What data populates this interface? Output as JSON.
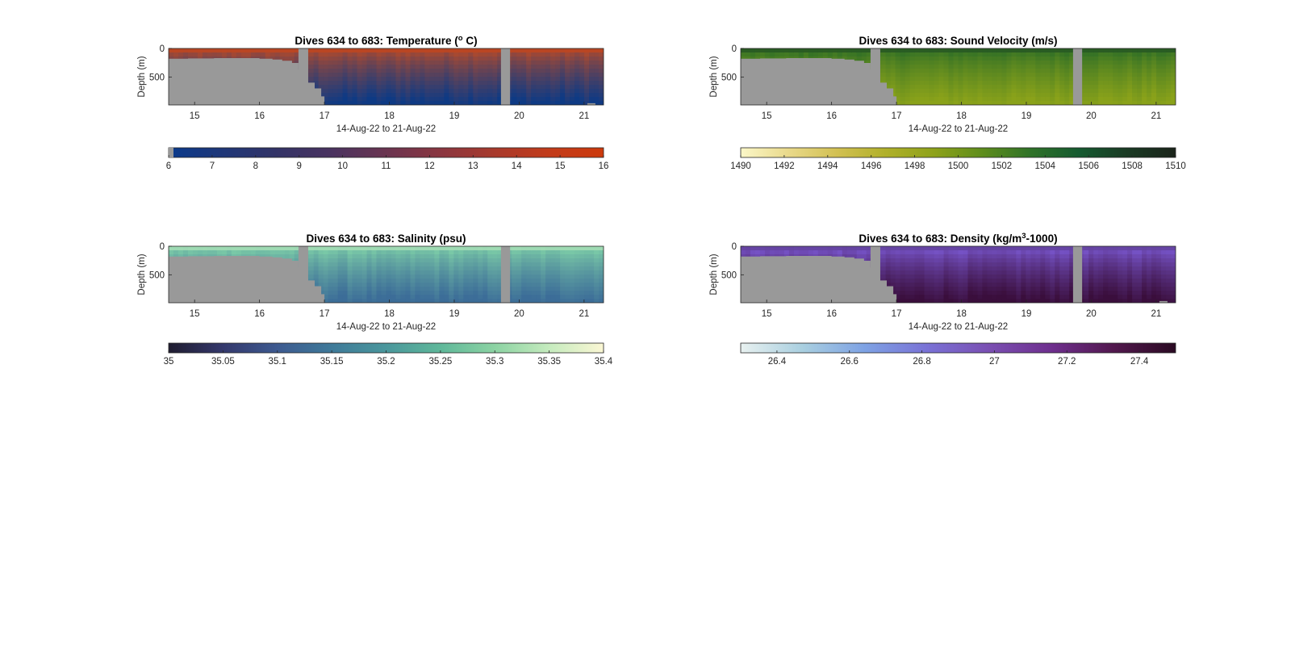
{
  "figure": {
    "background": "#ffffff",
    "nodata_color": "#999999"
  },
  "chart_data": [
    {
      "type": "heatmap",
      "variable": "temperature",
      "title_prefix": "Dives 634 to 683: Temperature (",
      "title_super": "o",
      "title_suffix": " C)",
      "xlabel": "14-Aug-22 to 21-Aug-22",
      "ylabel": "Depth (m)",
      "xlim": [
        14.6,
        21.3
      ],
      "ylim": [
        0,
        990
      ],
      "y_reversed": true,
      "xticks": [
        15,
        16,
        17,
        18,
        19,
        20,
        21
      ],
      "xtick_labels": [
        "15",
        "16",
        "17",
        "18",
        "19",
        "20",
        "21"
      ],
      "yticks": [
        0,
        500
      ],
      "ytick_labels": [
        "0",
        "500"
      ],
      "nodata_boundary": {
        "days": [
          14.6,
          14.9,
          15.3,
          15.7,
          16.0,
          16.2,
          16.35,
          16.5,
          16.6,
          16.7,
          16.75,
          16.85,
          16.95,
          17.0
        ],
        "depths": [
          180,
          175,
          170,
          170,
          180,
          195,
          215,
          255,
          370,
          560,
          600,
          700,
          840,
          990
        ]
      },
      "nodata_gap": [
        16.6,
        16.75
      ],
      "nodata_gap_2": [
        19.72,
        19.86
      ],
      "nodata_corner": {
        "day": 21.05,
        "depth": 960
      },
      "colorbar": {
        "min": 6,
        "max": 16,
        "ticks": [
          6,
          7,
          8,
          9,
          10,
          11,
          12,
          13,
          14,
          15,
          16
        ],
        "tick_labels": [
          "6",
          "7",
          "8",
          "9",
          "10",
          "11",
          "12",
          "13",
          "14",
          "15",
          "16"
        ],
        "colors": [
          "#0a3a8c",
          "#1f3778",
          "#333366",
          "#4a3360",
          "#6a3450",
          "#8a3640",
          "#a83a2c",
          "#c23b1a",
          "#cc3a0c"
        ]
      },
      "surface_color": "#b44a2a",
      "deep_color": "#0e3a84",
      "shallow_value": 12.8,
      "deep_value": 6.4
    },
    {
      "type": "heatmap",
      "variable": "sound_velocity",
      "title_prefix": "Dives 634 to 683: Sound Velocity (m/s)",
      "title_super": "",
      "title_suffix": "",
      "xlabel": "14-Aug-22 to 21-Aug-22",
      "ylabel": "Depth (m)",
      "xlim": [
        14.6,
        21.3
      ],
      "ylim": [
        0,
        990
      ],
      "y_reversed": true,
      "xticks": [
        15,
        16,
        17,
        18,
        19,
        20,
        21
      ],
      "xtick_labels": [
        "15",
        "16",
        "17",
        "18",
        "19",
        "20",
        "21"
      ],
      "yticks": [
        0,
        500
      ],
      "ytick_labels": [
        "0",
        "500"
      ],
      "nodata_boundary": {
        "days": [
          14.6,
          14.9,
          15.3,
          15.7,
          16.0,
          16.2,
          16.35,
          16.5,
          16.6,
          16.7,
          16.75,
          16.85,
          16.95,
          17.0
        ],
        "depths": [
          180,
          175,
          170,
          170,
          180,
          195,
          215,
          255,
          370,
          560,
          600,
          700,
          840,
          990
        ]
      },
      "nodata_gap": [
        16.6,
        16.75
      ],
      "nodata_gap_2": [
        19.72,
        19.86
      ],
      "nodata_corner": null,
      "colorbar": {
        "min": 1490,
        "max": 1510,
        "ticks": [
          1490,
          1492,
          1494,
          1496,
          1498,
          1500,
          1502,
          1504,
          1506,
          1508,
          1510
        ],
        "tick_labels": [
          "1490",
          "1492",
          "1494",
          "1496",
          "1498",
          "1500",
          "1502",
          "1504",
          "1506",
          "1508",
          "1510"
        ],
        "colors": [
          "#fbf7c8",
          "#e9d98a",
          "#d2c052",
          "#b0b02a",
          "#8ea21a",
          "#5e8d1c",
          "#2f7228",
          "#155a30",
          "#1a3a24",
          "#1b241a"
        ]
      },
      "surface_color": "#2e6e26",
      "deep_color": "#8aa21a",
      "shallow_value": 1505,
      "deep_value": 1497
    },
    {
      "type": "heatmap",
      "variable": "salinity",
      "title_prefix": "Dives 634 to 683: Salinity (psu)",
      "title_super": "",
      "title_suffix": "",
      "xlabel": "14-Aug-22 to 21-Aug-22",
      "ylabel": "Depth (m)",
      "xlim": [
        14.6,
        21.3
      ],
      "ylim": [
        0,
        990
      ],
      "y_reversed": true,
      "xticks": [
        15,
        16,
        17,
        18,
        19,
        20,
        21
      ],
      "xtick_labels": [
        "15",
        "16",
        "17",
        "18",
        "19",
        "20",
        "21"
      ],
      "yticks": [
        0,
        500
      ],
      "ytick_labels": [
        "0",
        "500"
      ],
      "nodata_boundary": {
        "days": [
          14.6,
          14.9,
          15.3,
          15.7,
          16.0,
          16.2,
          16.35,
          16.5,
          16.6,
          16.7,
          16.75,
          16.85,
          16.95,
          17.0
        ],
        "depths": [
          180,
          175,
          170,
          170,
          180,
          195,
          215,
          255,
          370,
          560,
          600,
          700,
          840,
          990
        ]
      },
      "nodata_gap": [
        16.6,
        16.75
      ],
      "nodata_gap_2": [
        19.72,
        19.86
      ],
      "nodata_corner": null,
      "colorbar": {
        "min": 35,
        "max": 35.4,
        "ticks": [
          35,
          35.05,
          35.1,
          35.15,
          35.2,
          35.25,
          35.3,
          35.35,
          35.4
        ],
        "tick_labels": [
          "35",
          "35.05",
          "35.1",
          "35.15",
          "35.2",
          "35.25",
          "35.3",
          "35.35",
          "35.4"
        ],
        "colors": [
          "#1f1c30",
          "#34386c",
          "#3d5a90",
          "#3f7a99",
          "#4a979c",
          "#5fb89a",
          "#8cd3a3",
          "#c5ebbe",
          "#fbf7d4"
        ]
      },
      "surface_color": "#7fd0a8",
      "deep_color": "#3c6d98",
      "shallow_value": 35.31,
      "deep_value": 35.14
    },
    {
      "type": "heatmap",
      "variable": "density",
      "title_prefix": "Dives 634 to 683: Density (kg/m",
      "title_super": "3",
      "title_suffix": "-1000)",
      "xlabel": "14-Aug-22 to 21-Aug-22",
      "ylabel": "Depth (m)",
      "xlim": [
        14.6,
        21.3
      ],
      "ylim": [
        0,
        990
      ],
      "y_reversed": true,
      "xticks": [
        15,
        16,
        17,
        18,
        19,
        20,
        21
      ],
      "xtick_labels": [
        "15",
        "16",
        "17",
        "18",
        "19",
        "20",
        "21"
      ],
      "yticks": [
        0,
        500
      ],
      "ytick_labels": [
        "0",
        "500"
      ],
      "nodata_boundary": {
        "days": [
          14.6,
          14.9,
          15.3,
          15.7,
          16.0,
          16.2,
          16.35,
          16.5,
          16.6,
          16.7,
          16.75,
          16.85,
          16.95,
          17.0
        ],
        "depths": [
          180,
          175,
          170,
          170,
          180,
          195,
          215,
          255,
          370,
          560,
          600,
          700,
          840,
          990
        ]
      },
      "nodata_gap": [
        16.6,
        16.75
      ],
      "nodata_gap_2": [
        19.72,
        19.86
      ],
      "nodata_corner": {
        "day": 21.05,
        "depth": 960
      },
      "colorbar": {
        "min": 26.3,
        "max": 27.5,
        "ticks": [
          26.4,
          26.6,
          26.8,
          27,
          27.2,
          27.4
        ],
        "tick_labels": [
          "26.4",
          "26.6",
          "26.8",
          "27",
          "27.2",
          "27.4"
        ],
        "colors": [
          "#e8f1f0",
          "#a9cfe0",
          "#7ea2e4",
          "#7a72d6",
          "#7a4fb2",
          "#6e2f8e",
          "#52184e",
          "#2a0a22"
        ]
      },
      "surface_color": "#7a58d0",
      "deep_color": "#3a0e3c",
      "shallow_value": 26.95,
      "deep_value": 27.42
    }
  ]
}
